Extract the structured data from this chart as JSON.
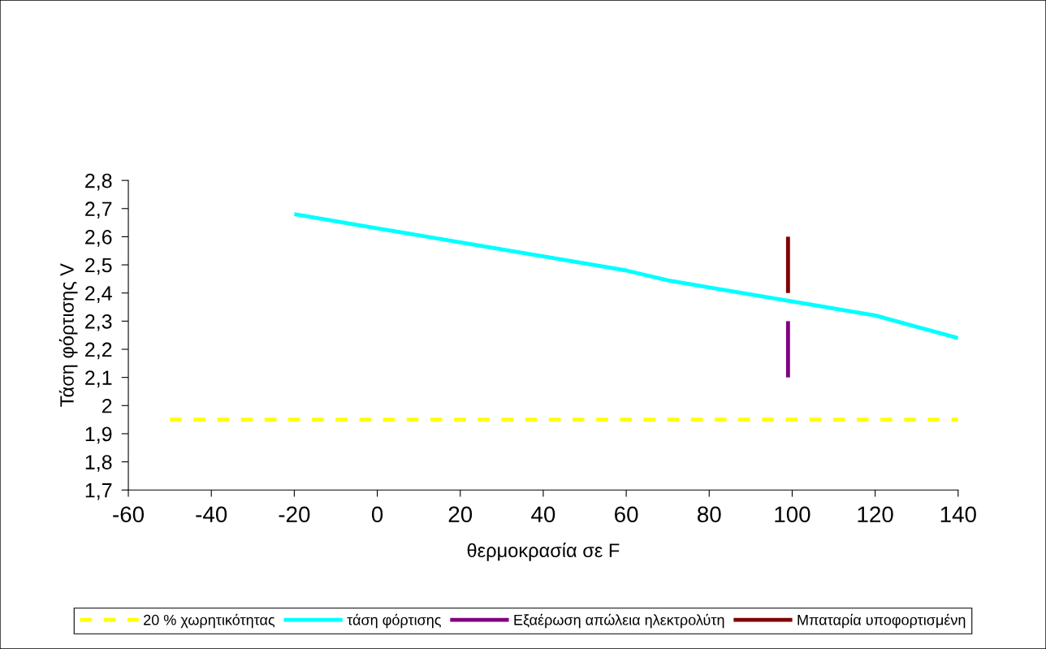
{
  "chart_data": {
    "type": "line",
    "xlabel": "θερμοκρασία σε F",
    "ylabel": "Τάση φόρτισης V",
    "xlim": [
      -60,
      140
    ],
    "xticks": [
      -60,
      -40,
      -20,
      0,
      20,
      40,
      60,
      80,
      100,
      120,
      140
    ],
    "ylim": [
      1.7,
      2.8
    ],
    "yticks": [
      {
        "value": 1.7,
        "label": "1,7"
      },
      {
        "value": 1.8,
        "label": "1,8"
      },
      {
        "value": 1.9,
        "label": "1,9"
      },
      {
        "value": 2.0,
        "label": "2"
      },
      {
        "value": 2.1,
        "label": "2,1"
      },
      {
        "value": 2.2,
        "label": "2,2"
      },
      {
        "value": 2.3,
        "label": "2,3"
      },
      {
        "value": 2.4,
        "label": "2,4"
      },
      {
        "value": 2.5,
        "label": "2,5"
      },
      {
        "value": 2.6,
        "label": "2,6"
      },
      {
        "value": 2.7,
        "label": "2,7"
      },
      {
        "value": 2.8,
        "label": "2,8"
      }
    ],
    "grid": false,
    "legend": "bottom",
    "marker": "none",
    "series": [
      {
        "name": "20 % χωρητικότητας",
        "color": "#ffff00",
        "line_style": "dashed",
        "x": [
          -50,
          140
        ],
        "values": [
          1.95,
          1.95
        ]
      },
      {
        "name": "τάση φόρτισης",
        "color": "#00ffff",
        "line_style": "solid",
        "x": [
          -20,
          0,
          20,
          40,
          60,
          70,
          80,
          100,
          120,
          130,
          140
        ],
        "values": [
          2.68,
          2.63,
          2.58,
          2.53,
          2.48,
          2.445,
          2.42,
          2.37,
          2.32,
          2.28,
          2.24
        ]
      },
      {
        "name": "Εξαέρωση απώλεια ηλεκτρολύτη",
        "color": "#800080",
        "line_style": "solid",
        "x": [
          99,
          99
        ],
        "values": [
          2.1,
          2.3
        ]
      },
      {
        "name": "Μπαταρία υποφορτισμένη",
        "color": "#800000",
        "line_style": "solid",
        "x": [
          99,
          99
        ],
        "values": [
          2.4,
          2.6
        ]
      }
    ]
  }
}
